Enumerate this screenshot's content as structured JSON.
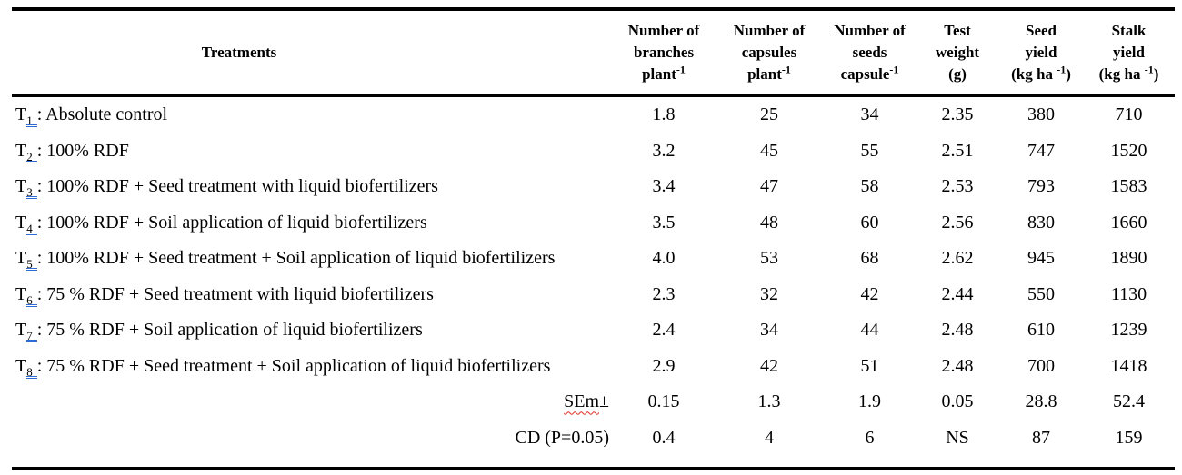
{
  "page": {
    "background": "#ffffff"
  },
  "colors": {
    "text": "#000000",
    "border": "#000000",
    "grammar_underline_blue": "#2e6bd4",
    "spellcheck_underline_red": "#e02b1e"
  },
  "table": {
    "separator": ":",
    "columns": [
      {
        "id": "treatments",
        "header_lines": [
          [
            "Treatments"
          ]
        ]
      },
      {
        "id": "branches",
        "header_lines": [
          [
            "Number of"
          ],
          [
            "branches"
          ],
          [
            "plant",
            {
              "sup": "-1"
            }
          ]
        ]
      },
      {
        "id": "capsules",
        "header_lines": [
          [
            "Number of"
          ],
          [
            "capsules"
          ],
          [
            "plant",
            {
              "sup": "-1"
            }
          ]
        ]
      },
      {
        "id": "seeds",
        "header_lines": [
          [
            "Number of"
          ],
          [
            "seeds"
          ],
          [
            "capsule",
            {
              "sup": "-1"
            }
          ]
        ]
      },
      {
        "id": "test-weight",
        "header_lines": [
          [
            "Test"
          ],
          [
            "weight"
          ],
          [
            "(g)"
          ]
        ]
      },
      {
        "id": "seed-yield",
        "header_lines": [
          [
            "Seed"
          ],
          [
            "yield"
          ],
          [
            "(kg ha ",
            {
              "sup": "-1"
            },
            ")"
          ]
        ]
      },
      {
        "id": "stalk-yield",
        "header_lines": [
          [
            "Stalk"
          ],
          [
            "yield"
          ],
          [
            "(kg ha ",
            {
              "sup": "-1"
            },
            ")"
          ]
        ]
      }
    ],
    "treatment_rows": [
      {
        "code": "T",
        "sub": "1",
        "desc": "Absolute control",
        "values": [
          "1.8",
          "25",
          "34",
          "2.35",
          "380",
          "710"
        ]
      },
      {
        "code": "T",
        "sub": "2",
        "desc": "100% RDF",
        "values": [
          "3.2",
          "45",
          "55",
          "2.51",
          "747",
          "1520"
        ]
      },
      {
        "code": "T",
        "sub": "3",
        "desc": "100% RDF + Seed treatment with liquid biofertilizers",
        "values": [
          "3.4",
          "47",
          "58",
          "2.53",
          "793",
          "1583"
        ]
      },
      {
        "code": "T",
        "sub": "4",
        "desc": "100% RDF + Soil application of liquid biofertilizers",
        "values": [
          "3.5",
          "48",
          "60",
          "2.56",
          "830",
          "1660"
        ]
      },
      {
        "code": "T",
        "sub": "5",
        "desc": "100% RDF + Seed treatment + Soil application of liquid biofertilizers",
        "values": [
          "4.0",
          "53",
          "68",
          "2.62",
          "945",
          "1890"
        ]
      },
      {
        "code": "T",
        "sub": "6",
        "desc": "75 % RDF + Seed treatment with liquid biofertilizers",
        "values": [
          "2.3",
          "32",
          "42",
          "2.44",
          "550",
          "1130"
        ]
      },
      {
        "code": "T",
        "sub": "7",
        "desc": "75 % RDF + Soil application of liquid biofertilizers",
        "values": [
          "2.4",
          "34",
          "44",
          "2.48",
          "610",
          "1239"
        ]
      },
      {
        "code": "T",
        "sub": "8",
        "desc": "75 % RDF + Seed treatment + Soil application of liquid biofertilizers",
        "values": [
          "2.9",
          "42",
          "51",
          "2.48",
          "700",
          "1418"
        ]
      }
    ],
    "stat_rows": [
      {
        "label": "SEm",
        "suffix": "±",
        "spell_flag": true,
        "values": [
          "0.15",
          "1.3",
          "1.9",
          "0.05",
          "28.8",
          "52.4"
        ]
      },
      {
        "label": "CD (P=0.05)",
        "suffix": "",
        "spell_flag": false,
        "values": [
          "0.4",
          "4",
          "6",
          "NS",
          "87",
          "159"
        ]
      }
    ]
  }
}
